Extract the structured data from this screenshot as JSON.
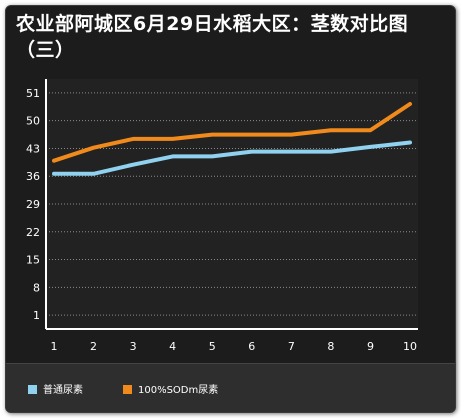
{
  "chart_data": {
    "type": "line",
    "title": "农业部阿城区6月29日水稻大区：茎数对比图（三）",
    "xlabel": "",
    "ylabel": "",
    "x": [
      "1",
      "2",
      "3",
      "4",
      "5",
      "6",
      "7",
      "8",
      "9",
      "10"
    ],
    "yticks": [
      "1",
      "8",
      "15",
      "22",
      "29",
      "36",
      "43",
      "50",
      "51"
    ],
    "grid": true,
    "legend_position": "bottom",
    "series": [
      {
        "name": "普通尿素",
        "color": "#8fd1ee",
        "values": [
          36.6,
          36.6,
          38.9,
          41.0,
          41.0,
          42.2,
          42.2,
          42.2,
          43.4,
          44.5
        ]
      },
      {
        "name": "100%SODm尿素",
        "color": "#f08a1c",
        "values": [
          39.9,
          43.2,
          45.4,
          45.4,
          46.5,
          46.5,
          46.5,
          47.6,
          47.6,
          50.6
        ]
      }
    ]
  }
}
